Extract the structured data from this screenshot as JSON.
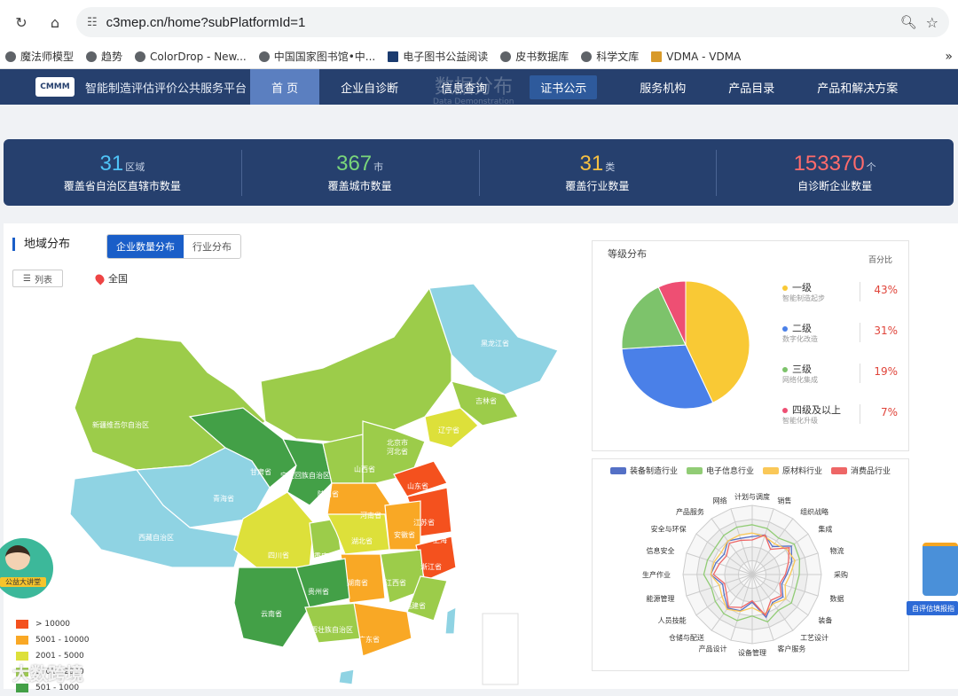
{
  "browser": {
    "url": "c3mep.cn/home?subPlatformId=1",
    "bookmarks": [
      "魔法师模型",
      "趋势",
      "ColorDrop - New...",
      "中国国家图书馆•中...",
      "电子图书公益阅读",
      "皮书数据库",
      "科学文库",
      "VDMA - VDMA"
    ]
  },
  "header": {
    "logo": "CMMM",
    "site_name": "智能制造评估评价公共服务平台",
    "nav": [
      "首 页",
      "企业自诊断",
      "信息查询",
      "证书公示",
      "服务机构",
      "产品目录",
      "产品和解决方案"
    ],
    "ghost_title": "数据分布",
    "ghost_subtitle": "Data Demonstration"
  },
  "stats": [
    {
      "value": "31",
      "unit": "区域",
      "label": "覆盖省自治区直辖市数量",
      "color": "#4fc3f7"
    },
    {
      "value": "367",
      "unit": "市",
      "label": "覆盖城市数量",
      "color": "#7ad67a"
    },
    {
      "value": "31",
      "unit": "类",
      "label": "覆盖行业数量",
      "color": "#f6c042"
    },
    {
      "value": "153370",
      "unit": "个",
      "label": "自诊断企业数量",
      "color": "#ff6b6b"
    }
  ],
  "map_section": {
    "title": "地域分布",
    "tabs": [
      "企业数量分布",
      "行业分布"
    ],
    "list_btn": "列表",
    "scope": "全国",
    "provinces": [
      "黑龙江省",
      "吉林省",
      "辽宁省",
      "北京市",
      "河北省",
      "新疆维吾尔自治区",
      "甘肃省",
      "宁夏回族自治区",
      "山西省",
      "山东省",
      "青海省",
      "陕西省",
      "河南省",
      "江苏省",
      "上海",
      "安徽省",
      "西藏自治区",
      "四川省",
      "重庆市",
      "湖北省",
      "浙江省",
      "贵州省",
      "湖南省",
      "江西省",
      "云南省",
      "广西壮族自治区",
      "福建省",
      "广东省"
    ],
    "legend": [
      {
        "label": "> 10000",
        "color": "#f4511e"
      },
      {
        "label": "5001 - 10000",
        "color": "#f9a825"
      },
      {
        "label": "2001 - 5000",
        "color": "#dde03a"
      },
      {
        "label": "1001 - 2000",
        "color": "#9ccc4a"
      },
      {
        "label": "501 - 1000",
        "color": "#43a047"
      }
    ],
    "float_label": "公益大讲堂",
    "watermark": "大数跨境"
  },
  "grade": {
    "title": "等级分布",
    "pct_header": "百分比",
    "items": [
      {
        "name": "一级",
        "sub": "智能制造起步",
        "pct": "43%",
        "value": 43,
        "color": "#f9c935"
      },
      {
        "name": "二级",
        "sub": "数字化改造",
        "pct": "31%",
        "value": 31,
        "color": "#4a80e8"
      },
      {
        "name": "三级",
        "sub": "网络化集成",
        "pct": "19%",
        "value": 19,
        "color": "#7dc36b"
      },
      {
        "name": "四级及以上",
        "sub": "智能化升级",
        "pct": "7%",
        "value": 7,
        "color": "#ee4f73"
      }
    ]
  },
  "radar": {
    "legend": [
      {
        "name": "装备制造行业",
        "color": "#5470c6"
      },
      {
        "name": "电子信息行业",
        "color": "#91cc75"
      },
      {
        "name": "原材料行业",
        "color": "#fac858"
      },
      {
        "name": "消费品行业",
        "color": "#ee6666"
      }
    ],
    "axes": [
      "计划与调度",
      "销售",
      "组织战略",
      "集成",
      "物流",
      "采购",
      "数据",
      "装备",
      "工艺设计",
      "客户服务",
      "设备管理",
      "产品设计",
      "仓储与配送",
      "人员技能",
      "能源管理",
      "生产作业",
      "信息安全",
      "安全与环保",
      "产品服务",
      "网络"
    ]
  },
  "side_widget": {
    "label": "自评估填报指"
  }
}
